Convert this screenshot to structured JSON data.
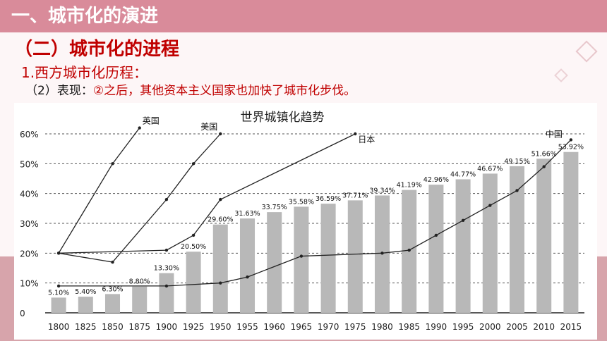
{
  "header": {
    "title": "一、城市化的演进"
  },
  "section": {
    "subtitle": "（二）城市化的进程",
    "point": "1.西方城市化历程：",
    "detail_prefix": "（2）表现：",
    "detail_highlight": "②之后，其他资本主义国家也加快了城市化步伐。"
  },
  "colors": {
    "header_bg": "#d98b9a",
    "accent_red": "#c00000",
    "bar": "#b8b8b8",
    "line": "#222222"
  },
  "chart_data": {
    "type": "bar",
    "title": "世界城镇化趋势",
    "categories": [
      "1800",
      "1825",
      "1850",
      "1875",
      "1900",
      "1925",
      "1950",
      "1955",
      "1960",
      "1965",
      "1970",
      "1975",
      "1980",
      "1985",
      "1990",
      "1995",
      "2000",
      "2005",
      "2010",
      "2015"
    ],
    "ytick_labels": [
      "0",
      "10%",
      "20%",
      "30%",
      "40%",
      "50%",
      "60%"
    ],
    "ylim": [
      0,
      60
    ],
    "series": [
      {
        "name": "",
        "values": [
          5.1,
          5.4,
          6.3,
          8.8,
          13.3,
          20.5,
          29.6,
          31.63,
          33.75,
          35.58,
          36.59,
          37.71,
          39.34,
          41.19,
          42.96,
          44.77,
          46.67,
          49.15,
          51.66,
          53.92
        ],
        "labels": [
          "5.10%",
          "5.40%",
          "6.30%",
          "8.80%",
          "13.30%",
          "20.50%",
          "29.60%",
          "31.63%",
          "33.75%",
          "35.58%",
          "36.59%",
          "37.71%",
          "39.34%",
          "41.19%",
          "42.96%",
          "44.77%",
          "46.67%",
          "49.15%",
          "51.66%",
          "53.92%"
        ]
      }
    ],
    "lines": [
      {
        "name": "英国",
        "points": [
          [
            "1800",
            20
          ],
          [
            "1850",
            50
          ],
          [
            "1875",
            62
          ]
        ]
      },
      {
        "name": "美国",
        "points": [
          [
            "1800",
            20
          ],
          [
            "1850",
            17
          ],
          [
            "1900",
            38
          ],
          [
            "1925",
            50
          ],
          [
            "1950",
            60
          ]
        ]
      },
      {
        "name": "日本",
        "points": [
          [
            "1800",
            20
          ],
          [
            "1900",
            21
          ],
          [
            "1925",
            26
          ],
          [
            "1950",
            38
          ],
          [
            "1975",
            60
          ]
        ]
      },
      {
        "name": "中国",
        "points": [
          [
            "1800",
            9
          ],
          [
            "1900",
            9
          ],
          [
            "1950",
            10
          ],
          [
            "1955",
            12
          ],
          [
            "1965",
            19
          ],
          [
            "1980",
            20
          ],
          [
            "1985",
            21
          ],
          [
            "1990",
            26
          ],
          [
            "1995",
            31
          ],
          [
            "2000",
            36
          ],
          [
            "2005",
            41
          ],
          [
            "2010",
            49
          ],
          [
            "2015",
            58
          ]
        ]
      }
    ]
  }
}
